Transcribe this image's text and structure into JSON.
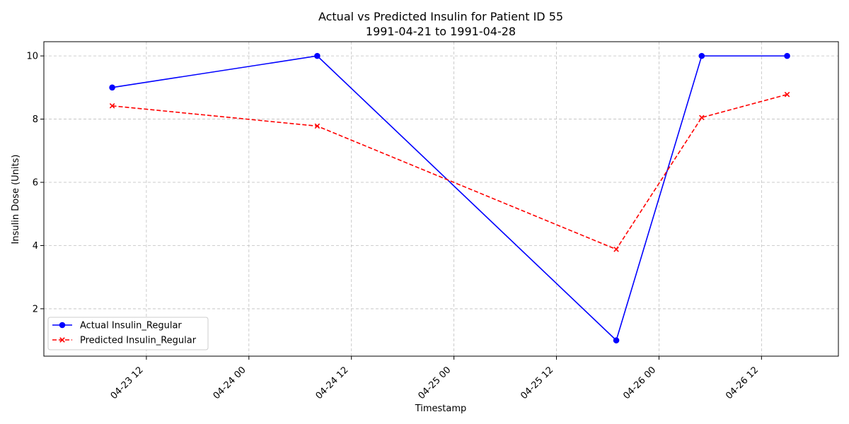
{
  "chart_data": {
    "type": "line",
    "title": "Actual vs Predicted Insulin for Patient ID 55",
    "subtitle": "1991-04-21 to 1991-04-28",
    "xlabel": "Timestamp",
    "ylabel": "Insulin Dose (Units)",
    "x_tick_labels": [
      "04-23 12",
      "04-24 00",
      "04-24 12",
      "04-25 00",
      "04-25 12",
      "04-26 00",
      "04-26 12"
    ],
    "x_ticks": [
      "1991-04-23 12:00",
      "1991-04-24 00:00",
      "1991-04-24 12:00",
      "1991-04-25 00:00",
      "1991-04-25 12:00",
      "1991-04-26 00:00",
      "1991-04-26 12:00"
    ],
    "y_ticks": [
      2,
      4,
      6,
      8,
      10
    ],
    "xlim": [
      "1991-04-23 00:00",
      "1991-04-26 21:00"
    ],
    "ylim": [
      0.5,
      10.45
    ],
    "grid": true,
    "legend_position": "lower-left",
    "x": [
      "1991-04-23 08:00",
      "1991-04-24 08:00",
      "1991-04-25 19:00",
      "1991-04-26 05:00",
      "1991-04-26 15:00"
    ],
    "series": [
      {
        "name": "Actual Insulin_Regular",
        "values": [
          9,
          10,
          1,
          10,
          10
        ],
        "color": "#0000ff",
        "style": "solid",
        "marker": "circle"
      },
      {
        "name": "Predicted Insulin_Regular",
        "values": [
          8.42,
          7.78,
          3.88,
          8.05,
          8.78
        ],
        "color": "#ff0000",
        "style": "dashed",
        "marker": "x"
      }
    ]
  }
}
